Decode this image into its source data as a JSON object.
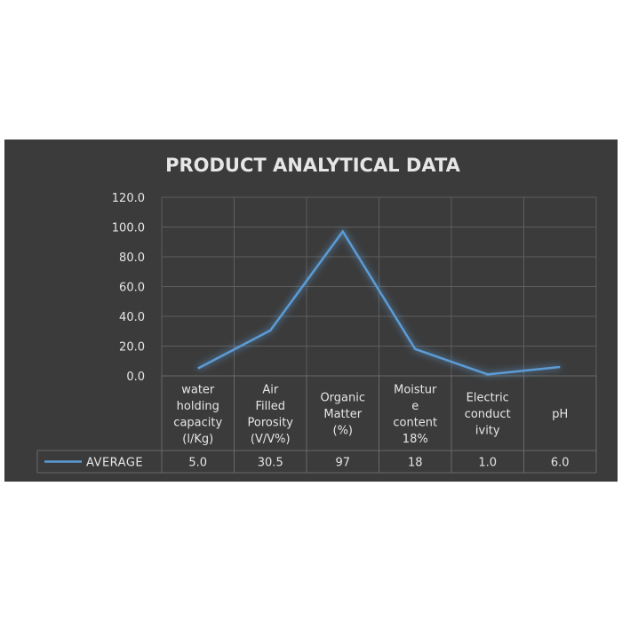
{
  "chart_data": {
    "type": "line",
    "title": "PRODUCT ANALYTICAL DATA",
    "categories": [
      [
        "water",
        "holding",
        "capacity",
        "(l/Kg)"
      ],
      [
        "Air",
        "Filled",
        "Porosity",
        "(V/V%)"
      ],
      [
        "Organic",
        "Matter",
        "(%)"
      ],
      [
        "Moistur",
        "e",
        "content",
        "18%"
      ],
      [
        "Electric",
        "conduct",
        "ivity"
      ],
      [
        "pH"
      ]
    ],
    "series": [
      {
        "name": "AVERAGE",
        "values": [
          5.0,
          30.5,
          97,
          18,
          1.0,
          6.0
        ],
        "labels": [
          "5.0",
          "30.5",
          "97",
          "18",
          "1.0",
          "6.0"
        ],
        "color": "#5b9bd5"
      }
    ],
    "ylim": [
      0,
      120
    ],
    "yticks": [
      "0.0",
      "20.0",
      "40.0",
      "60.0",
      "80.0",
      "100.0",
      "120.0"
    ],
    "grid": true,
    "legend": "data-table",
    "background": "#3b3b3b"
  }
}
